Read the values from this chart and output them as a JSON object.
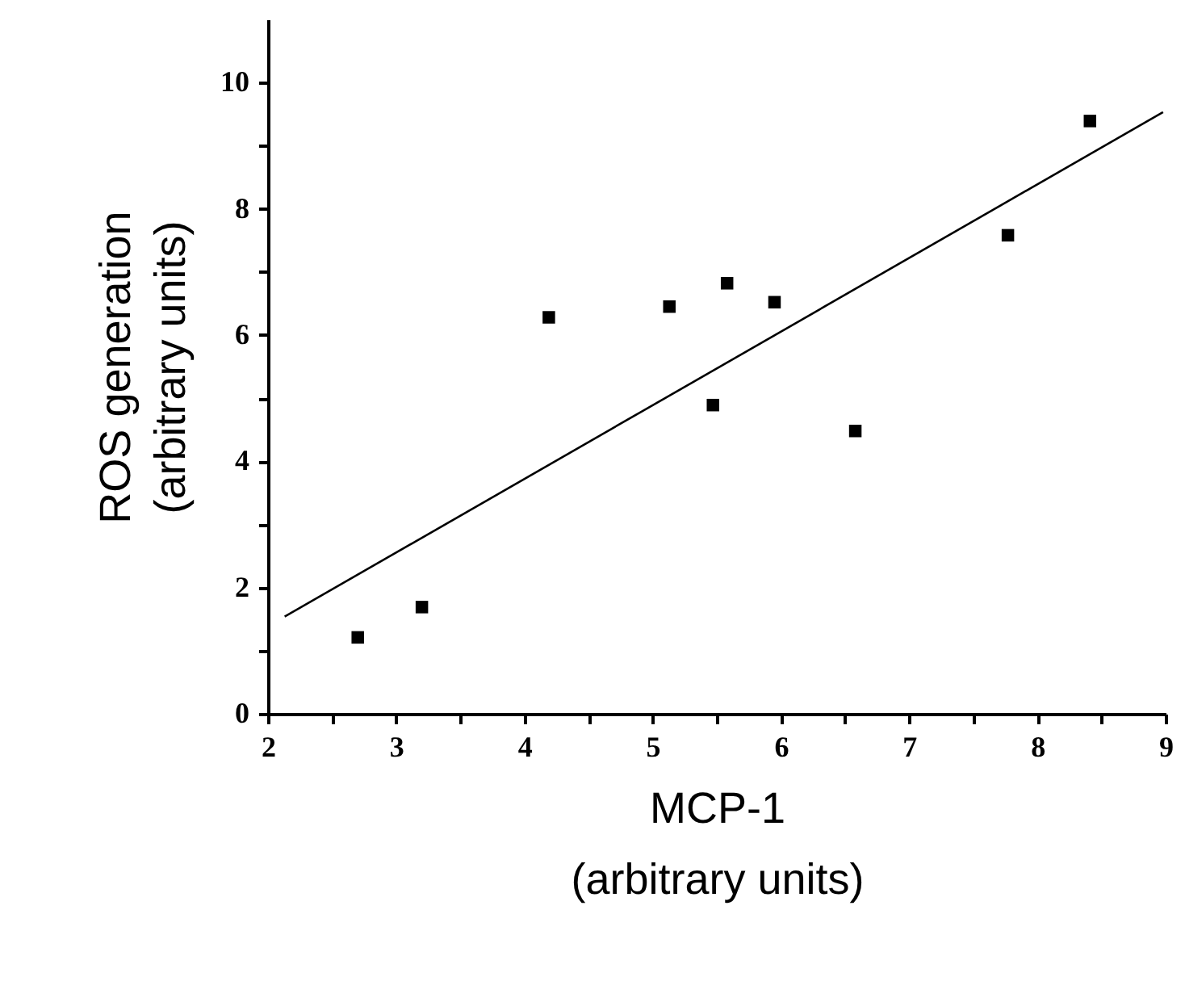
{
  "chart_data": {
    "type": "scatter",
    "xlabel": "MCP-1\n(arbitrary units)",
    "ylabel": "ROS generation\n(arbitrary units)",
    "xlim": [
      2,
      9
    ],
    "xticks": [
      2,
      {
        "value": 2.5,
        "label": null
      },
      3,
      {
        "value": 3.5,
        "label": null
      },
      4,
      {
        "value": 4.5,
        "label": null
      },
      5,
      {
        "value": 5.5,
        "label": null
      },
      6,
      {
        "value": 6.5,
        "label": null
      },
      7,
      {
        "value": 7.5,
        "label": null
      },
      8,
      {
        "value": 8.5,
        "label": null
      },
      9
    ],
    "ylim": [
      0,
      11
    ],
    "yticks": [
      0,
      {
        "value": 1,
        "label": null
      },
      2,
      {
        "value": 3,
        "label": null
      },
      4,
      {
        "value": 5,
        "label": null
      },
      6,
      {
        "value": 7,
        "label": null
      },
      8,
      {
        "value": 9,
        "label": null
      },
      10
    ],
    "series": [
      {
        "type": "scatter",
        "color": "#000000",
        "marker": "square",
        "x": [
          2.7,
          3.2,
          4.19,
          5.13,
          5.47,
          5.58,
          5.95,
          6.58,
          7.77,
          8.41
        ],
        "values": [
          1.21,
          1.69,
          6.28,
          6.45,
          4.89,
          6.82,
          6.52,
          4.48,
          7.58,
          9.39
        ]
      },
      {
        "type": "line",
        "color": "#000000",
        "line_style": "solid",
        "x": [
          2.13,
          8.98
        ],
        "values": [
          1.54,
          9.53
        ]
      }
    ]
  }
}
